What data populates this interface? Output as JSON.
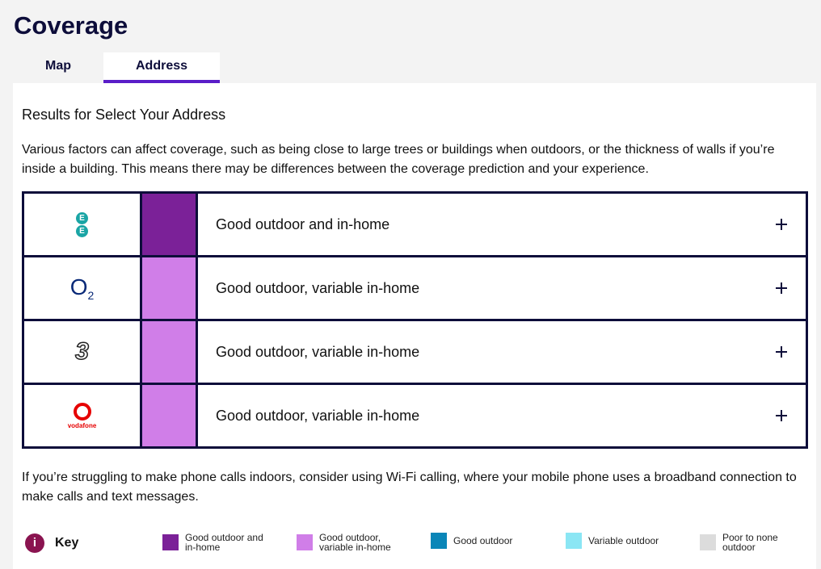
{
  "header": {
    "title": "Coverage"
  },
  "tabs": [
    {
      "label": "Map",
      "active": false
    },
    {
      "label": "Address",
      "active": true
    }
  ],
  "results": {
    "heading": "Results for Select Your Address",
    "intro": "Various factors can affect coverage, such as being close to large trees or buildings when outdoors, or the thickness of walls if you’re inside a building. This means there may be differences between the coverage prediction and your experience.",
    "operators": [
      {
        "logo": "ee",
        "logo_text": [
          "E",
          "E"
        ],
        "color": "#7b2198",
        "status": "Good outdoor and in-home"
      },
      {
        "logo": "o2",
        "logo_text": [
          "O",
          "2"
        ],
        "color": "#d07ee8",
        "status": "Good outdoor, variable in-home"
      },
      {
        "logo": "three",
        "logo_text": [
          "3"
        ],
        "color": "#d07ee8",
        "status": "Good outdoor, variable in-home"
      },
      {
        "logo": "vodafone",
        "logo_text": [
          "vodafone"
        ],
        "color": "#d07ee8",
        "status": "Good outdoor, variable in-home"
      }
    ],
    "footer": "If you’re struggling to make phone calls indoors, consider using Wi-Fi calling, where your mobile phone uses a broadband connection to make calls and text messages."
  },
  "key": {
    "icon": "i",
    "title": "Key",
    "items": [
      {
        "label": "Good outdoor and in-home",
        "color": "#7b2198"
      },
      {
        "label": "Good outdoor, variable in-home",
        "color": "#d07ee8"
      },
      {
        "label": "Good outdoor",
        "color": "#0a86b8"
      },
      {
        "label": "Variable outdoor",
        "color": "#8be6f4"
      },
      {
        "label": "Poor to none outdoor",
        "color": "#dcdcdc"
      }
    ]
  }
}
